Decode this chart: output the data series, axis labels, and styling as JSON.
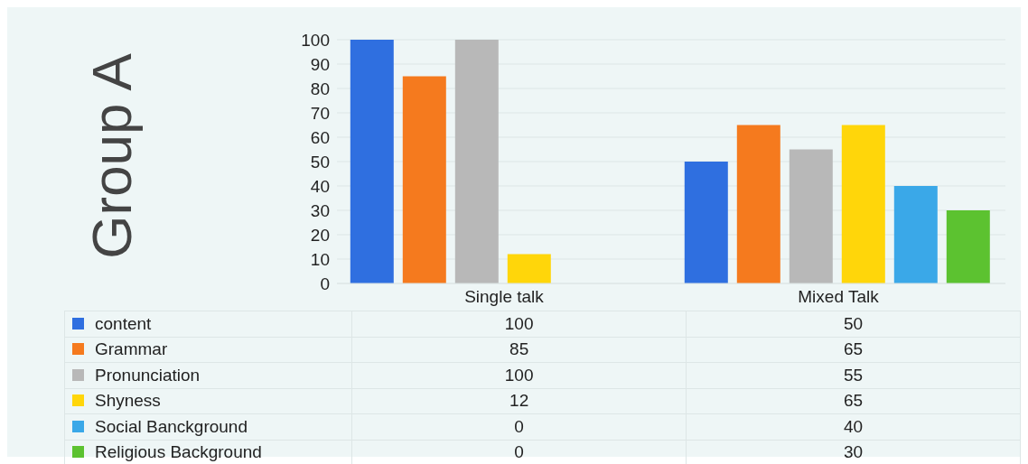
{
  "chart_data": {
    "type": "bar",
    "ylabel": "Group A",
    "categories": [
      "Single talk",
      "Mixed Talk"
    ],
    "series": [
      {
        "name": "content",
        "color": "#2f6fe0",
        "values": [
          100,
          50
        ]
      },
      {
        "name": "Grammar",
        "color": "#f57a1e",
        "values": [
          85,
          65
        ]
      },
      {
        "name": "Pronunciation",
        "color": "#b8b8b8",
        "values": [
          100,
          55
        ]
      },
      {
        "name": "Shyness",
        "color": "#ffd60a",
        "values": [
          12,
          65
        ]
      },
      {
        "name": "Social Banckground",
        "color": "#3aa8e8",
        "values": [
          0,
          40
        ]
      },
      {
        "name": "Religious Background",
        "color": "#5cc230",
        "values": [
          0,
          30
        ]
      }
    ],
    "ylim": [
      0,
      100
    ],
    "yticks": [
      0,
      10,
      20,
      30,
      40,
      50,
      60,
      70,
      80,
      90,
      100
    ],
    "grid": "y",
    "legend": "bottom",
    "data_labels": true
  }
}
